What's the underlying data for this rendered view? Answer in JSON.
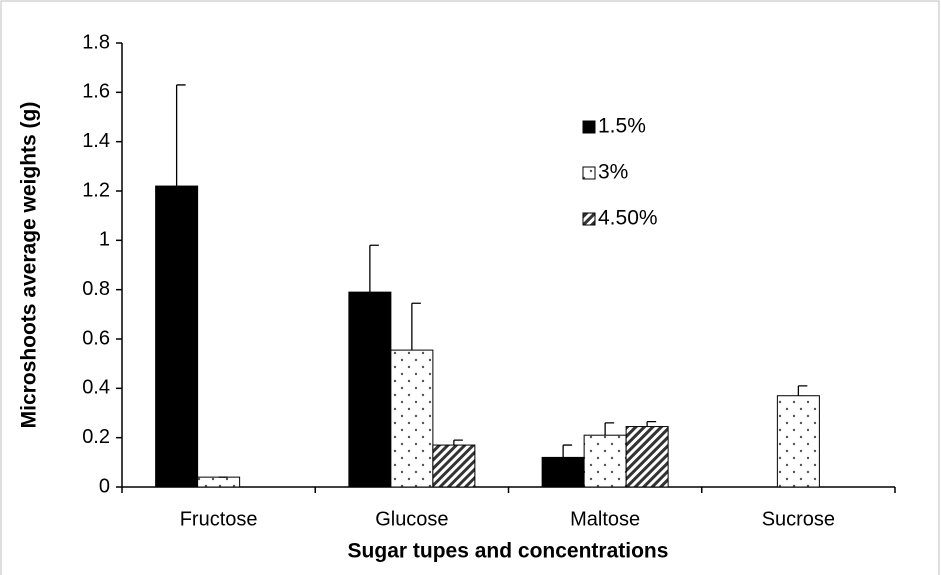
{
  "chart_data": {
    "type": "bar",
    "y_label": "Microshoots average weights (g)",
    "x_label": "Sugar tupes and concentrations",
    "categories": [
      "Fructose",
      "Glucose",
      "Maltose",
      "Sucrose"
    ],
    "series": [
      {
        "name": "1.5%",
        "color": "#000000",
        "pattern": "solid",
        "values": [
          1.22,
          0.79,
          0.12,
          null
        ],
        "errors": [
          0.41,
          0.19,
          0.05,
          null
        ]
      },
      {
        "name": "3%",
        "color": "#000000",
        "pattern": "dots",
        "values": [
          0.04,
          0.555,
          0.21,
          0.37
        ],
        "errors": [
          0,
          0.19,
          0.05,
          0.04
        ]
      },
      {
        "name": "4.50%",
        "color": "#000000",
        "pattern": "hatch",
        "values": [
          null,
          0.17,
          0.245,
          null
        ],
        "errors": [
          null,
          0.02,
          0.02,
          null
        ]
      }
    ],
    "ylim": [
      0,
      1.8
    ],
    "yticks": [
      0,
      0.2,
      0.4,
      0.6,
      0.8,
      1,
      1.2,
      1.4,
      1.6,
      1.8
    ],
    "grid": false
  }
}
